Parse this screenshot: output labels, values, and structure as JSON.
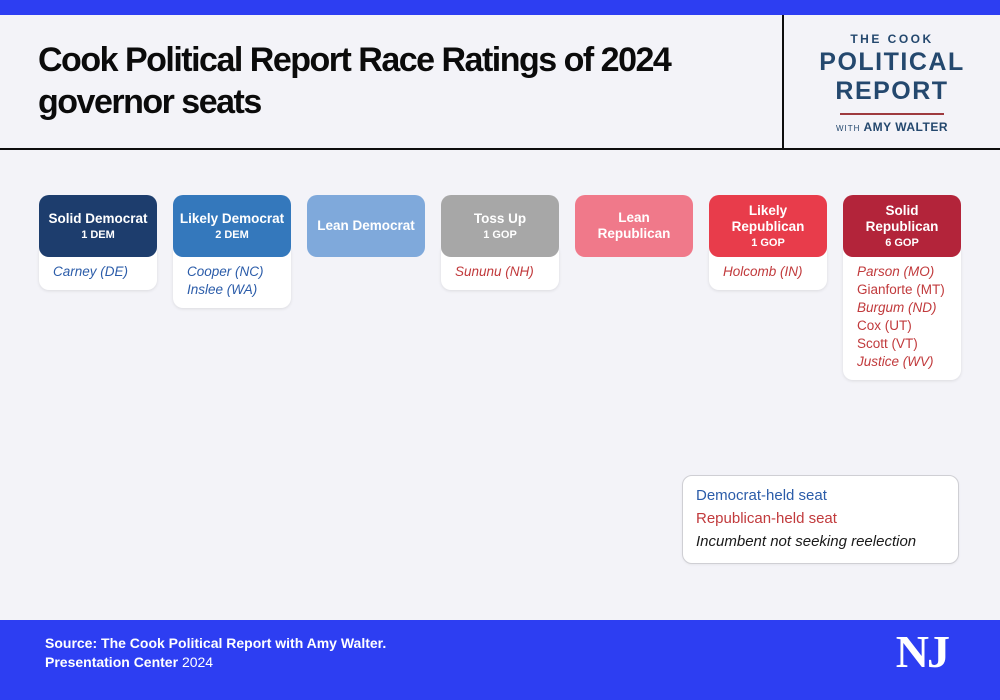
{
  "colors": {
    "page_bg": "#f3f3f8",
    "brand_blue": "#2d3ef2",
    "rule_black": "#0d0d0d",
    "dem_name": "#2b5ca9",
    "rep_name": "#c13a3c",
    "logo_navy": "#24486e",
    "logo_rule_red": "#9e3a3e"
  },
  "header": {
    "title_line1": "Cook Political Report Race Ratings of 2024",
    "title_line2": "governor seats",
    "logo": {
      "top": "THE COOK",
      "main1": "POLITICAL",
      "main2": "REPORT",
      "with": "WITH",
      "name": "AMY WALTER"
    }
  },
  "chart_data": {
    "type": "table",
    "title": "Cook Political Report Race Ratings of 2024 governor seats",
    "layout_note": "7 rating columns left-to-right from Solid Democrat to Solid Republican; italic name = incumbent not seeking reelection",
    "categories": [
      {
        "label": "Solid Democrat",
        "count": "1 DEM",
        "color": "#1d3d6d",
        "party": "dem",
        "races": [
          {
            "name": "Carney (DE)",
            "open_seat": true
          }
        ]
      },
      {
        "label": "Likely Democrat",
        "count": "2 DEM",
        "color": "#3478bc",
        "party": "dem",
        "races": [
          {
            "name": "Cooper (NC)",
            "open_seat": true
          },
          {
            "name": "Inslee (WA)",
            "open_seat": true
          }
        ]
      },
      {
        "label": "Lean Democrat",
        "count": "",
        "color": "#7fa9db",
        "party": "dem",
        "races": []
      },
      {
        "label": "Toss Up",
        "count": "1 GOP",
        "color": "#a7a7a7",
        "party": "rep",
        "races": [
          {
            "name": "Sununu (NH)",
            "open_seat": true
          }
        ]
      },
      {
        "label": "Lean Republican",
        "count": "",
        "color": "#f0798a",
        "party": "rep",
        "races": []
      },
      {
        "label": "Likely Republican",
        "count": "1 GOP",
        "color": "#e83c4b",
        "party": "rep",
        "races": [
          {
            "name": "Holcomb (IN)",
            "open_seat": true
          }
        ]
      },
      {
        "label": "Solid Republican",
        "count": "6 GOP",
        "color": "#b3243a",
        "party": "rep",
        "races": [
          {
            "name": "Parson (MO)",
            "open_seat": true
          },
          {
            "name": "Gianforte (MT)",
            "open_seat": false
          },
          {
            "name": "Burgum (ND)",
            "open_seat": true
          },
          {
            "name": "Cox (UT)",
            "open_seat": false
          },
          {
            "name": "Scott (VT)",
            "open_seat": false
          },
          {
            "name": "Justice (WV)",
            "open_seat": true
          }
        ]
      }
    ]
  },
  "legend": {
    "items": [
      {
        "text": "Democrat-held seat",
        "color": "#2b5ca9",
        "italic": false
      },
      {
        "text": "Republican-held seat",
        "color": "#c13a3c",
        "italic": false
      },
      {
        "text": "Incumbent not seeking reelection",
        "color": "#1a1a1a",
        "italic": true
      }
    ]
  },
  "footer": {
    "source_line1": "Source: The Cook Political Report with Amy Walter.",
    "source_line2_bold": "Presentation Center",
    "source_line2_regular": "2024",
    "nj_logo": "NJ"
  }
}
